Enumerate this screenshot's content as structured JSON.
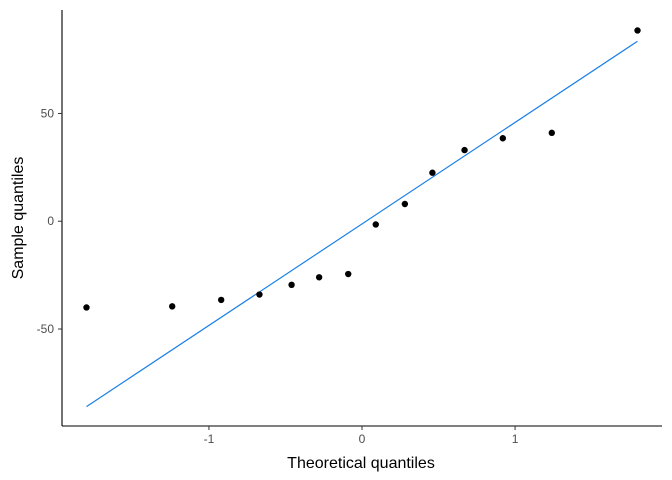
{
  "chart_data": {
    "type": "scatter",
    "xlabel": "Theoretical quantiles",
    "ylabel": "Sample quantiles",
    "xlim": [
      -1.96,
      1.96
    ],
    "ylim": [
      -95,
      98
    ],
    "xticks": [
      -1,
      0,
      1
    ],
    "yticks": [
      -50,
      0,
      50
    ],
    "grid": false,
    "points": {
      "x": [
        -1.8,
        -1.24,
        -0.92,
        -0.67,
        -0.46,
        -0.28,
        -0.09,
        0.09,
        0.28,
        0.46,
        0.67,
        0.92,
        1.24,
        1.8
      ],
      "y": [
        -40,
        -39.5,
        -36.5,
        -34,
        -29.5,
        -26,
        -24.5,
        -1.5,
        8,
        22.5,
        33,
        38.5,
        41,
        88.5
      ]
    },
    "reference_line": {
      "x": [
        -1.8,
        1.8
      ],
      "y": [
        -86,
        83.5
      ]
    },
    "colors": {
      "points": "#000000",
      "line": "#1a7fe8",
      "axis": "#000000",
      "tick_text": "#4d4d4d"
    }
  }
}
